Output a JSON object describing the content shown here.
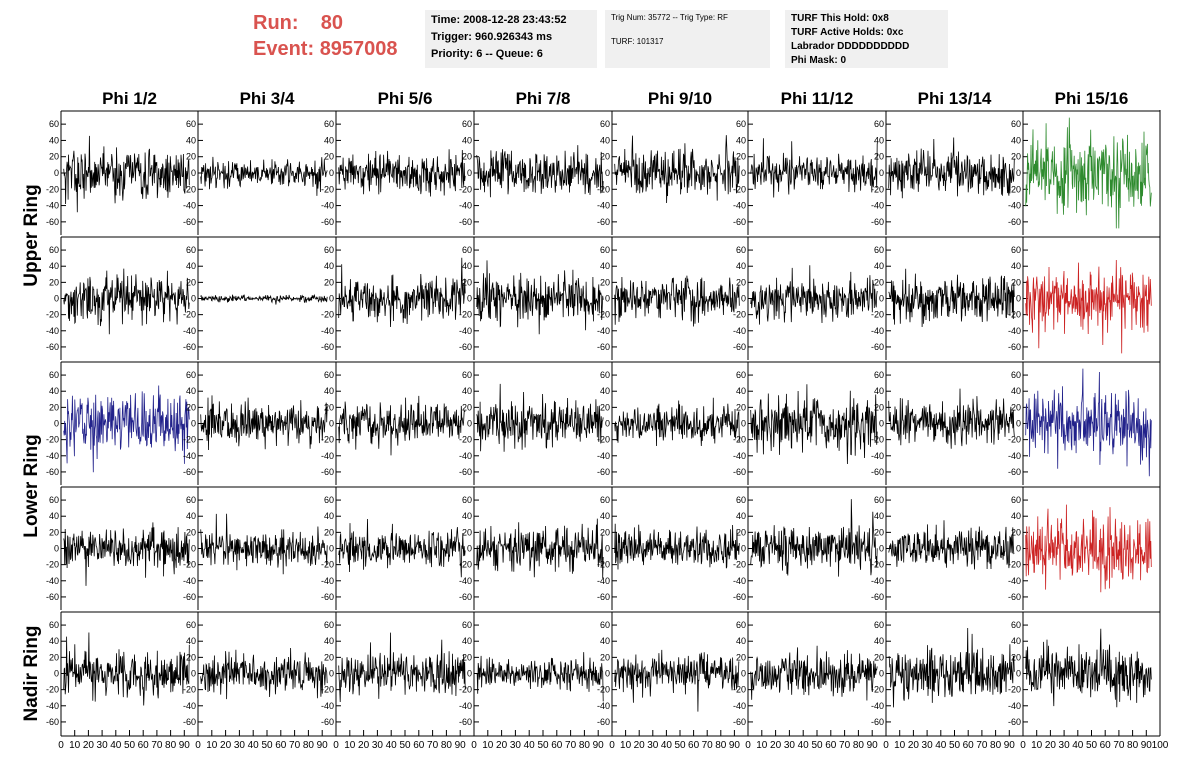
{
  "header": {
    "run_label": "Run:",
    "run_value": "80",
    "event_label": "Event:",
    "event_value": "8957008",
    "time": "Time: 2008-12-28 23:43:52",
    "trigger": "Trigger: 960.926343 ms",
    "priority": "Priority: 6 -- Queue: 6",
    "trig_num": "Trig Num: 35772 -- Trig Type: RF",
    "turf": "TURF: 101317",
    "turf_this_hold": "TURF This Hold: 0x8",
    "turf_active_holds": "TURF Active Holds: 0xc",
    "labrador": "Labrador DDDDDDDDDD",
    "phi_mask": "Phi Mask: 0"
  },
  "chart_data": {
    "type": "line",
    "columns": [
      "Phi 1/2",
      "Phi 3/4",
      "Phi 5/6",
      "Phi 7/8",
      "Phi 9/10",
      "Phi 11/12",
      "Phi 13/14",
      "Phi 15/16"
    ],
    "row_labels": [
      {
        "label": "Upper Ring",
        "rows": [
          0,
          1
        ]
      },
      {
        "label": "Lower Ring",
        "rows": [
          2,
          3
        ]
      },
      {
        "label": "Nadir Ring",
        "rows": [
          4
        ]
      }
    ],
    "xlim": [
      0,
      100
    ],
    "ylim": [
      -70,
      70
    ],
    "yticks": [
      -60,
      -40,
      -20,
      0,
      20,
      40,
      60
    ],
    "yticklabels": [
      "-60",
      "-40",
      "-20",
      "0",
      "20",
      "40",
      "60"
    ],
    "xticks": [
      0,
      10,
      20,
      30,
      40,
      50,
      60,
      70,
      80,
      90,
      100
    ],
    "xticklabels": [
      "0",
      "10",
      "20",
      "30",
      "40",
      "50",
      "60",
      "70",
      "80",
      "90",
      "100"
    ],
    "colors": {
      "normal": "#000000",
      "green": "#2e8b2e",
      "red": "#cc2222",
      "blue": "#22228b"
    },
    "panel_color": [
      [
        "normal",
        "normal",
        "normal",
        "normal",
        "normal",
        "normal",
        "normal",
        "green"
      ],
      [
        "normal",
        "normal",
        "normal",
        "normal",
        "normal",
        "normal",
        "normal",
        "red"
      ],
      [
        "blue",
        "normal",
        "normal",
        "normal",
        "normal",
        "normal",
        "normal",
        "blue"
      ],
      [
        "normal",
        "normal",
        "normal",
        "normal",
        "normal",
        "normal",
        "normal",
        "red"
      ],
      [
        "normal",
        "normal",
        "normal",
        "normal",
        "normal",
        "normal",
        "normal",
        "normal"
      ]
    ],
    "panel_amplitude": [
      [
        15,
        8,
        12,
        13,
        14,
        11,
        12,
        22
      ],
      [
        14,
        2,
        13,
        14,
        13,
        13,
        14,
        20
      ],
      [
        17,
        12,
        13,
        14,
        11,
        16,
        13,
        20
      ],
      [
        12,
        11,
        11,
        13,
        11,
        14,
        11,
        20
      ],
      [
        14,
        12,
        12,
        10,
        11,
        13,
        15,
        15
      ]
    ],
    "samples_per_trace": 260
  }
}
